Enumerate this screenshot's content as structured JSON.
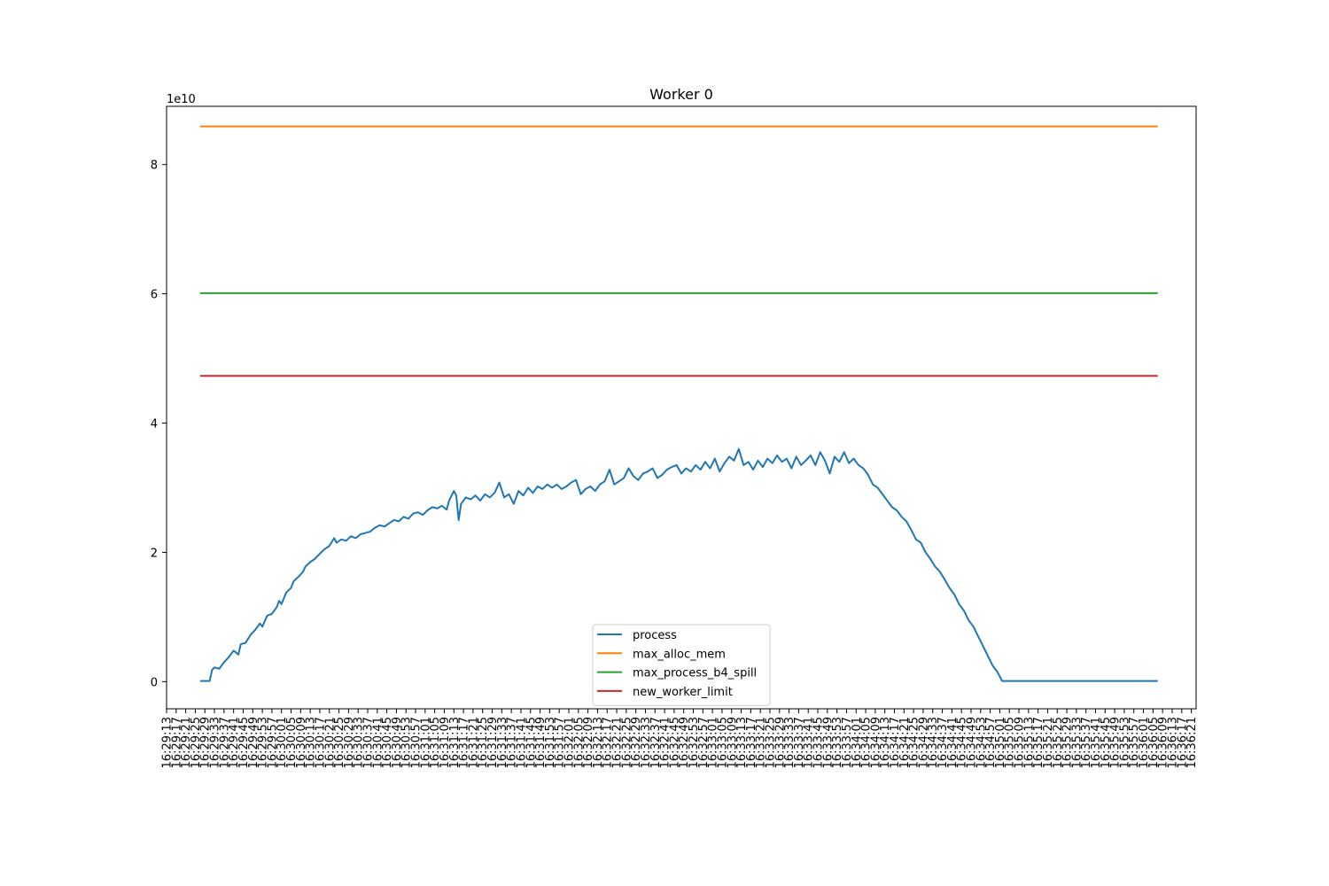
{
  "chart_data": {
    "type": "line",
    "title": "Worker 0",
    "xlabel": "",
    "ylabel": "",
    "y_scale_label": "1e10",
    "ylim": [
      -0.42,
      8.9
    ],
    "y_ticks": [
      0,
      2,
      4,
      6,
      8
    ],
    "grid": false,
    "legend_position": "lower center",
    "x_tick_labels": [
      "16:29:13",
      "16:29:17",
      "16:29:21",
      "16:29:25",
      "16:29:29",
      "16:29:33",
      "16:29:37",
      "16:29:41",
      "16:29:45",
      "16:29:49",
      "16:29:53",
      "16:29:57",
      "16:30:01",
      "16:30:05",
      "16:30:09",
      "16:30:13",
      "16:30:17",
      "16:30:21",
      "16:30:25",
      "16:30:29",
      "16:30:33",
      "16:30:37",
      "16:30:41",
      "16:30:45",
      "16:30:49",
      "16:30:53",
      "16:30:57",
      "16:31:01",
      "16:31:05",
      "16:31:09",
      "16:31:13",
      "16:31:17",
      "16:31:21",
      "16:31:25",
      "16:31:29",
      "16:31:33",
      "16:31:37",
      "16:31:41",
      "16:31:45",
      "16:31:49",
      "16:31:53",
      "16:31:57",
      "16:32:01",
      "16:32:05",
      "16:32:09",
      "16:32:13",
      "16:32:17",
      "16:32:21",
      "16:32:25",
      "16:32:29",
      "16:32:33",
      "16:32:37",
      "16:32:41",
      "16:32:45",
      "16:32:49",
      "16:32:53",
      "16:32:57",
      "16:33:01",
      "16:33:05",
      "16:33:09",
      "16:33:13",
      "16:33:17",
      "16:33:21",
      "16:33:25",
      "16:33:29",
      "16:33:33",
      "16:33:37",
      "16:33:41",
      "16:33:45",
      "16:33:49",
      "16:33:53",
      "16:33:57",
      "16:34:01",
      "16:34:05",
      "16:34:09",
      "16:34:13",
      "16:34:17",
      "16:34:21",
      "16:34:25",
      "16:34:29",
      "16:34:33",
      "16:34:37",
      "16:34:41",
      "16:34:45",
      "16:34:49",
      "16:34:53",
      "16:34:57",
      "16:35:01",
      "16:35:05",
      "16:35:09",
      "16:35:13",
      "16:35:17",
      "16:35:21",
      "16:35:25",
      "16:35:29",
      "16:35:33",
      "16:35:37",
      "16:35:41",
      "16:35:45",
      "16:35:49",
      "16:35:53",
      "16:35:57",
      "16:36:01",
      "16:36:05",
      "16:36:09",
      "16:36:13",
      "16:36:17",
      "16:36:21"
    ],
    "x_range": [
      "16:29:13",
      "16:36:23"
    ],
    "series": [
      {
        "name": "process",
        "color": "#1f77b4",
        "points": [
          [
            "16:29:27",
            0.01
          ],
          [
            "16:29:31",
            0.01
          ],
          [
            "16:29:32",
            0.18
          ],
          [
            "16:29:33",
            0.22
          ],
          [
            "16:29:35",
            0.2
          ],
          [
            "16:29:37",
            0.3
          ],
          [
            "16:29:39",
            0.38
          ],
          [
            "16:29:41",
            0.48
          ],
          [
            "16:29:43",
            0.42
          ],
          [
            "16:29:44",
            0.58
          ],
          [
            "16:29:46",
            0.6
          ],
          [
            "16:29:48",
            0.72
          ],
          [
            "16:29:50",
            0.8
          ],
          [
            "16:29:52",
            0.9
          ],
          [
            "16:29:53",
            0.85
          ],
          [
            "16:29:55",
            1.02
          ],
          [
            "16:29:57",
            1.05
          ],
          [
            "16:29:59",
            1.15
          ],
          [
            "16:30:00",
            1.25
          ],
          [
            "16:30:01",
            1.2
          ],
          [
            "16:30:03",
            1.38
          ],
          [
            "16:30:05",
            1.45
          ],
          [
            "16:30:06",
            1.55
          ],
          [
            "16:30:08",
            1.62
          ],
          [
            "16:30:10",
            1.7
          ],
          [
            "16:30:11",
            1.78
          ],
          [
            "16:30:13",
            1.85
          ],
          [
            "16:30:15",
            1.9
          ],
          [
            "16:30:17",
            1.98
          ],
          [
            "16:30:19",
            2.05
          ],
          [
            "16:30:21",
            2.1
          ],
          [
            "16:30:23",
            2.22
          ],
          [
            "16:30:24",
            2.15
          ],
          [
            "16:30:26",
            2.2
          ],
          [
            "16:30:28",
            2.18
          ],
          [
            "16:30:30",
            2.25
          ],
          [
            "16:30:32",
            2.22
          ],
          [
            "16:30:34",
            2.28
          ],
          [
            "16:30:36",
            2.3
          ],
          [
            "16:30:38",
            2.32
          ],
          [
            "16:30:40",
            2.38
          ],
          [
            "16:30:42",
            2.42
          ],
          [
            "16:30:44",
            2.4
          ],
          [
            "16:30:46",
            2.45
          ],
          [
            "16:30:48",
            2.5
          ],
          [
            "16:30:50",
            2.48
          ],
          [
            "16:30:52",
            2.55
          ],
          [
            "16:30:54",
            2.52
          ],
          [
            "16:30:56",
            2.6
          ],
          [
            "16:30:58",
            2.62
          ],
          [
            "16:31:00",
            2.58
          ],
          [
            "16:31:02",
            2.65
          ],
          [
            "16:31:04",
            2.7
          ],
          [
            "16:31:06",
            2.68
          ],
          [
            "16:31:08",
            2.72
          ],
          [
            "16:31:10",
            2.66
          ],
          [
            "16:31:11",
            2.8
          ],
          [
            "16:31:13",
            2.95
          ],
          [
            "16:31:14",
            2.88
          ],
          [
            "16:31:15",
            2.5
          ],
          [
            "16:31:16",
            2.75
          ],
          [
            "16:31:18",
            2.85
          ],
          [
            "16:31:20",
            2.82
          ],
          [
            "16:31:22",
            2.88
          ],
          [
            "16:31:24",
            2.8
          ],
          [
            "16:31:26",
            2.9
          ],
          [
            "16:31:28",
            2.85
          ],
          [
            "16:31:30",
            2.92
          ],
          [
            "16:31:32",
            3.08
          ],
          [
            "16:31:34",
            2.85
          ],
          [
            "16:31:36",
            2.9
          ],
          [
            "16:31:38",
            2.75
          ],
          [
            "16:31:40",
            2.95
          ],
          [
            "16:31:42",
            2.88
          ],
          [
            "16:31:44",
            3.0
          ],
          [
            "16:31:46",
            2.92
          ],
          [
            "16:31:48",
            3.02
          ],
          [
            "16:31:50",
            2.98
          ],
          [
            "16:31:52",
            3.05
          ],
          [
            "16:31:54",
            3.0
          ],
          [
            "16:31:56",
            3.05
          ],
          [
            "16:31:58",
            2.98
          ],
          [
            "16:32:00",
            3.02
          ],
          [
            "16:32:02",
            3.08
          ],
          [
            "16:32:04",
            3.12
          ],
          [
            "16:32:06",
            2.9
          ],
          [
            "16:32:08",
            2.98
          ],
          [
            "16:32:10",
            3.02
          ],
          [
            "16:32:12",
            2.95
          ],
          [
            "16:32:14",
            3.05
          ],
          [
            "16:32:16",
            3.1
          ],
          [
            "16:32:18",
            3.28
          ],
          [
            "16:32:20",
            3.05
          ],
          [
            "16:32:22",
            3.1
          ],
          [
            "16:32:24",
            3.15
          ],
          [
            "16:32:26",
            3.3
          ],
          [
            "16:32:28",
            3.18
          ],
          [
            "16:32:30",
            3.12
          ],
          [
            "16:32:32",
            3.22
          ],
          [
            "16:32:34",
            3.25
          ],
          [
            "16:32:36",
            3.3
          ],
          [
            "16:32:38",
            3.15
          ],
          [
            "16:32:40",
            3.2
          ],
          [
            "16:32:42",
            3.28
          ],
          [
            "16:32:44",
            3.32
          ],
          [
            "16:32:46",
            3.35
          ],
          [
            "16:32:48",
            3.22
          ],
          [
            "16:32:50",
            3.3
          ],
          [
            "16:32:52",
            3.25
          ],
          [
            "16:32:54",
            3.35
          ],
          [
            "16:32:56",
            3.28
          ],
          [
            "16:32:58",
            3.4
          ],
          [
            "16:33:00",
            3.3
          ],
          [
            "16:33:02",
            3.45
          ],
          [
            "16:33:04",
            3.25
          ],
          [
            "16:33:06",
            3.38
          ],
          [
            "16:33:08",
            3.48
          ],
          [
            "16:33:10",
            3.42
          ],
          [
            "16:33:12",
            3.6
          ],
          [
            "16:33:14",
            3.35
          ],
          [
            "16:33:16",
            3.4
          ],
          [
            "16:33:18",
            3.28
          ],
          [
            "16:33:20",
            3.42
          ],
          [
            "16:33:22",
            3.32
          ],
          [
            "16:33:24",
            3.45
          ],
          [
            "16:33:26",
            3.38
          ],
          [
            "16:33:28",
            3.5
          ],
          [
            "16:33:30",
            3.4
          ],
          [
            "16:33:32",
            3.45
          ],
          [
            "16:33:34",
            3.3
          ],
          [
            "16:33:36",
            3.48
          ],
          [
            "16:33:38",
            3.35
          ],
          [
            "16:33:40",
            3.42
          ],
          [
            "16:33:42",
            3.5
          ],
          [
            "16:33:44",
            3.35
          ],
          [
            "16:33:46",
            3.55
          ],
          [
            "16:33:48",
            3.42
          ],
          [
            "16:33:50",
            3.22
          ],
          [
            "16:33:52",
            3.48
          ],
          [
            "16:33:54",
            3.4
          ],
          [
            "16:33:56",
            3.55
          ],
          [
            "16:33:58",
            3.38
          ],
          [
            "16:34:00",
            3.45
          ],
          [
            "16:34:02",
            3.35
          ],
          [
            "16:34:04",
            3.3
          ],
          [
            "16:34:06",
            3.2
          ],
          [
            "16:34:08",
            3.05
          ],
          [
            "16:34:10",
            3.0
          ],
          [
            "16:34:12",
            2.9
          ],
          [
            "16:34:14",
            2.8
          ],
          [
            "16:34:16",
            2.7
          ],
          [
            "16:34:18",
            2.65
          ],
          [
            "16:34:20",
            2.55
          ],
          [
            "16:34:22",
            2.48
          ],
          [
            "16:34:24",
            2.35
          ],
          [
            "16:34:26",
            2.2
          ],
          [
            "16:34:28",
            2.15
          ],
          [
            "16:34:30",
            2.0
          ],
          [
            "16:34:32",
            1.9
          ],
          [
            "16:34:34",
            1.78
          ],
          [
            "16:34:36",
            1.7
          ],
          [
            "16:34:38",
            1.58
          ],
          [
            "16:34:40",
            1.45
          ],
          [
            "16:34:42",
            1.35
          ],
          [
            "16:34:44",
            1.2
          ],
          [
            "16:34:46",
            1.1
          ],
          [
            "16:34:48",
            0.95
          ],
          [
            "16:34:50",
            0.85
          ],
          [
            "16:34:52",
            0.7
          ],
          [
            "16:34:54",
            0.55
          ],
          [
            "16:34:56",
            0.4
          ],
          [
            "16:34:58",
            0.25
          ],
          [
            "16:35:00",
            0.15
          ],
          [
            "16:35:02",
            0.01
          ],
          [
            "16:36:07",
            0.01
          ]
        ]
      },
      {
        "name": "max_alloc_mem",
        "color": "#ff7f0e",
        "points": [
          [
            "16:29:27",
            8.59
          ],
          [
            "16:36:07",
            8.59
          ]
        ]
      },
      {
        "name": "max_process_b4_spill",
        "color": "#2ca02c",
        "points": [
          [
            "16:29:27",
            6.01
          ],
          [
            "16:36:07",
            6.01
          ]
        ]
      },
      {
        "name": "new_worker_limit",
        "color": "#d62728",
        "points": [
          [
            "16:29:27",
            4.73
          ],
          [
            "16:36:07",
            4.73
          ]
        ]
      }
    ]
  }
}
